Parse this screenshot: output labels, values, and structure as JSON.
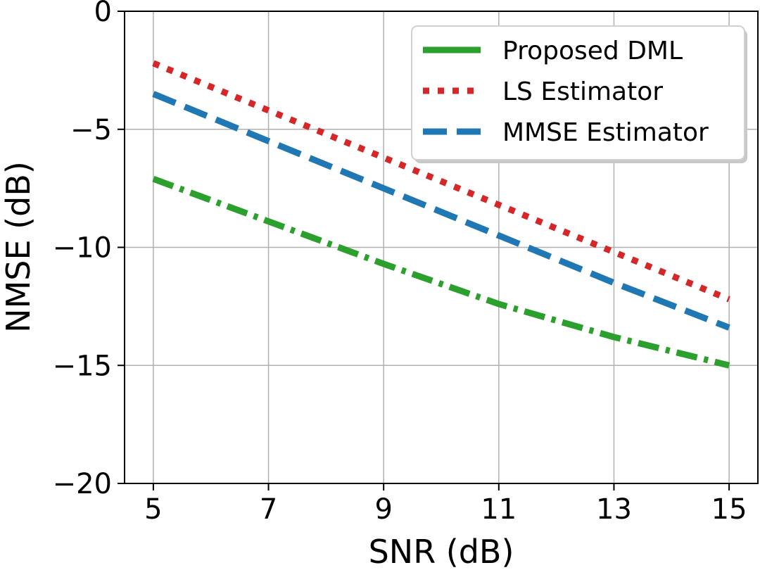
{
  "chart_data": {
    "type": "line",
    "title": "",
    "xlabel": "SNR (dB)",
    "ylabel": "NMSE (dB)",
    "xlim": [
      4.5,
      15.5
    ],
    "ylim": [
      -20,
      0
    ],
    "xticks": [
      5,
      7,
      9,
      11,
      13,
      15
    ],
    "yticks": [
      0,
      -5,
      -10,
      -15,
      -20
    ],
    "xtick_labels": [
      "5",
      "7",
      "9",
      "11",
      "13",
      "15"
    ],
    "ytick_labels": [
      "0",
      "−5",
      "−10",
      "−15",
      "−20"
    ],
    "grid": true,
    "legend_position": "top-right",
    "series": [
      {
        "name": "Proposed DML",
        "color": "#2ca02c",
        "style": "dashdot",
        "x": [
          5,
          7,
          9,
          11,
          13,
          15
        ],
        "y": [
          -7.1,
          -8.9,
          -10.7,
          -12.4,
          -13.8,
          -15.0
        ]
      },
      {
        "name": "LS Estimator",
        "color": "#d62728",
        "style": "dotted",
        "x": [
          5,
          7,
          9,
          11,
          13,
          15
        ],
        "y": [
          -2.2,
          -4.2,
          -6.2,
          -8.2,
          -10.2,
          -12.2
        ]
      },
      {
        "name": "MMSE Estimator",
        "color": "#1f77b4",
        "style": "dashed",
        "x": [
          5,
          7,
          9,
          11,
          13,
          15
        ],
        "y": [
          -3.5,
          -5.5,
          -7.5,
          -9.5,
          -11.5,
          -13.4
        ]
      }
    ]
  }
}
